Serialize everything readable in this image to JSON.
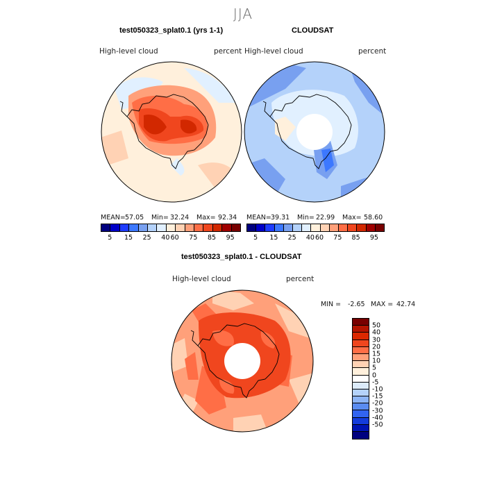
{
  "season": "JJA",
  "panel_left": {
    "title": "test050323_splat0.1 (yrs 1-1)",
    "field": "High-level cloud",
    "units": "percent",
    "mean_label": "MEAN=",
    "mean": "57.05",
    "min_label": "Min=",
    "min": "32.24",
    "max_label": "Max=",
    "max": "92.34"
  },
  "panel_right": {
    "title": "CLOUDSAT",
    "field": "High-level cloud",
    "units": "percent",
    "mean_label": "MEAN=",
    "mean": "39.31",
    "min_label": "Min=",
    "min": "22.99",
    "max_label": "Max=",
    "max": "58.60"
  },
  "panel_diff": {
    "title": "test050323_splat0.1 - CLOUDSAT",
    "field": "High-level cloud",
    "units": "percent",
    "min_label": "MIN =",
    "min": "-2.65",
    "max_label": "MAX =",
    "max": "42.74"
  },
  "colorbar_top": {
    "colors": [
      "#00007f",
      "#0000c8",
      "#1e3cff",
      "#3c78ff",
      "#78a0f0",
      "#b4d2fa",
      "#e1f0ff",
      "#fff0dc",
      "#ffd2b4",
      "#ffa07a",
      "#ff6e46",
      "#f0461e",
      "#d22800",
      "#a00000",
      "#780000"
    ],
    "ticks": [
      "5",
      "15",
      "25",
      "40",
      "60",
      "75",
      "85",
      "95"
    ]
  },
  "colorbar_diff": {
    "colors": [
      "#780000",
      "#b41400",
      "#dc2800",
      "#f0461e",
      "#ff6e46",
      "#ffa07a",
      "#ffd2b4",
      "#fff0dc",
      "#ffffff",
      "#dcebfa",
      "#b4d2fa",
      "#8cb4f5",
      "#5a8cf0",
      "#3264f0",
      "#143cdc",
      "#0014b4",
      "#00007f"
    ],
    "ticks": [
      "50",
      "40",
      "30",
      "20",
      "15",
      "10",
      "5",
      "0",
      "-5",
      "-10",
      "-15",
      "-20",
      "-30",
      "-40",
      "-50"
    ]
  }
}
